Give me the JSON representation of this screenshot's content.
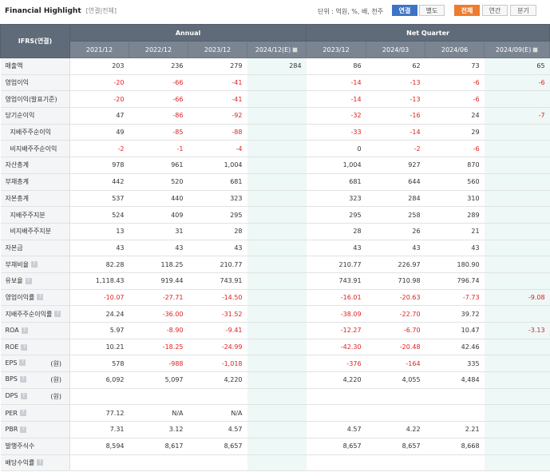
{
  "header": {
    "title": "Financial Highlight",
    "subtitle": "[연결|전체]",
    "units": "단위 : 억원, %, 배, 천주",
    "toggle_group1": [
      "연결",
      "별도"
    ],
    "toggle_group2": [
      "전체",
      "연간",
      "분기"
    ]
  },
  "table": {
    "corner_label": "IFRS(연결)",
    "group_annual": "Annual",
    "group_quarter": "Net Quarter",
    "columns": [
      "2021/12",
      "2022/12",
      "2023/12",
      "2024/12(E)",
      "2023/12",
      "2024/03",
      "2024/06",
      "2024/09(E)"
    ],
    "rows": [
      {
        "label": "매출액",
        "cells": [
          "203",
          "236",
          "279",
          "284",
          "86",
          "62",
          "73",
          "65"
        ]
      },
      {
        "label": "영업이익",
        "cells": [
          "-20",
          "-66",
          "-41",
          "",
          "-14",
          "-13",
          "-6",
          "-6"
        ]
      },
      {
        "label": "영업이익(발표기준)",
        "cells": [
          "-20",
          "-66",
          "-41",
          "",
          "-14",
          "-13",
          "-6",
          ""
        ]
      },
      {
        "label": "당기순이익",
        "cells": [
          "47",
          "-86",
          "-92",
          "",
          "-32",
          "-16",
          "24",
          "-7"
        ]
      },
      {
        "label": "지배주주순이익",
        "sub": true,
        "cells": [
          "49",
          "-85",
          "-88",
          "",
          "-33",
          "-14",
          "29",
          ""
        ]
      },
      {
        "label": "비지배주주순이익",
        "sub": true,
        "cells": [
          "-2",
          "-1",
          "-4",
          "",
          "0",
          "-2",
          "-6",
          ""
        ]
      },
      {
        "label": "자산총계",
        "cells": [
          "978",
          "961",
          "1,004",
          "",
          "1,004",
          "927",
          "870",
          ""
        ]
      },
      {
        "label": "부채총계",
        "cells": [
          "442",
          "520",
          "681",
          "",
          "681",
          "644",
          "560",
          ""
        ]
      },
      {
        "label": "자본총계",
        "cells": [
          "537",
          "440",
          "323",
          "",
          "323",
          "284",
          "310",
          ""
        ]
      },
      {
        "label": "지배주주지분",
        "sub": true,
        "cells": [
          "524",
          "409",
          "295",
          "",
          "295",
          "258",
          "289",
          ""
        ]
      },
      {
        "label": "비지배주주지분",
        "sub": true,
        "cells": [
          "13",
          "31",
          "28",
          "",
          "28",
          "26",
          "21",
          ""
        ]
      },
      {
        "label": "자본금",
        "cells": [
          "43",
          "43",
          "43",
          "",
          "43",
          "43",
          "43",
          ""
        ]
      },
      {
        "label": "부채비율",
        "help": true,
        "cells": [
          "82.28",
          "118.25",
          "210.77",
          "",
          "210.77",
          "226.97",
          "180.90",
          ""
        ]
      },
      {
        "label": "유보율",
        "help": true,
        "cells": [
          "1,118.43",
          "919.44",
          "743.91",
          "",
          "743.91",
          "710.98",
          "796.74",
          ""
        ]
      },
      {
        "label": "영업이익률",
        "help": true,
        "cells": [
          "-10.07",
          "-27.71",
          "-14.50",
          "",
          "-16.01",
          "-20.63",
          "-7.73",
          "-9.08"
        ]
      },
      {
        "label": "지배주주순이익률",
        "help": true,
        "cells": [
          "24.24",
          "-36.00",
          "-31.52",
          "",
          "-38.09",
          "-22.70",
          "39.72",
          ""
        ]
      },
      {
        "label": "ROA",
        "help": true,
        "cells": [
          "5.97",
          "-8.90",
          "-9.41",
          "",
          "-12.27",
          "-6.70",
          "10.47",
          "-3.13"
        ]
      },
      {
        "label": "ROE",
        "help": true,
        "cells": [
          "10.21",
          "-18.25",
          "-24.99",
          "",
          "-42.30",
          "-20.48",
          "42.46",
          ""
        ]
      },
      {
        "label": "EPS",
        "help": true,
        "unit": "(원)",
        "cells": [
          "578",
          "-988",
          "-1,018",
          "",
          "-376",
          "-164",
          "335",
          ""
        ]
      },
      {
        "label": "BPS",
        "help": true,
        "unit": "(원)",
        "cells": [
          "6,092",
          "5,097",
          "4,220",
          "",
          "4,220",
          "4,055",
          "4,484",
          ""
        ]
      },
      {
        "label": "DPS",
        "help": true,
        "unit": "(원)",
        "cells": [
          "",
          "",
          "",
          "",
          "",
          "",
          "",
          ""
        ]
      },
      {
        "label": "PER",
        "help": true,
        "cells": [
          "77.12",
          "N/A",
          "N/A",
          "",
          "",
          "",
          "",
          ""
        ]
      },
      {
        "label": "PBR",
        "help": true,
        "cells": [
          "7.31",
          "3.12",
          "4.57",
          "",
          "4.57",
          "4.22",
          "2.21",
          ""
        ]
      },
      {
        "label": "발행주식수",
        "cells": [
          "8,594",
          "8,617",
          "8,657",
          "",
          "8,657",
          "8,657",
          "8,668",
          ""
        ]
      },
      {
        "label": "배당수익률",
        "help": true,
        "cells": [
          "",
          "",
          "",
          "",
          "",
          "",
          "",
          ""
        ]
      }
    ]
  }
}
